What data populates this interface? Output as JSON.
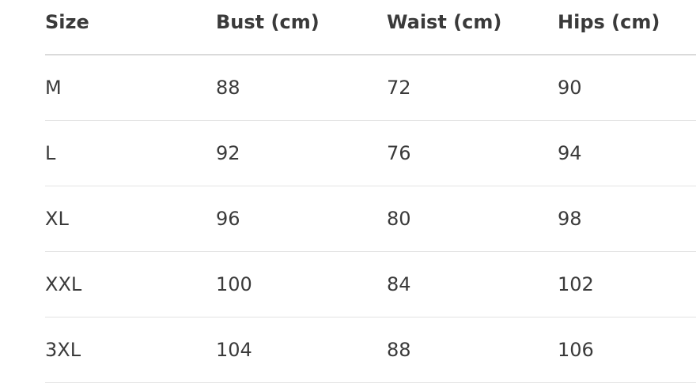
{
  "table": {
    "headers": [
      "Size",
      "Bust (cm)",
      "Waist (cm)",
      "Hips (cm)"
    ],
    "rows": [
      [
        "M",
        "88",
        "72",
        "90"
      ],
      [
        "L",
        "92",
        "76",
        "94"
      ],
      [
        "XL",
        "96",
        "80",
        "98"
      ],
      [
        "XXL",
        "100",
        "84",
        "102"
      ],
      [
        "3XL",
        "104",
        "88",
        "106"
      ]
    ]
  }
}
